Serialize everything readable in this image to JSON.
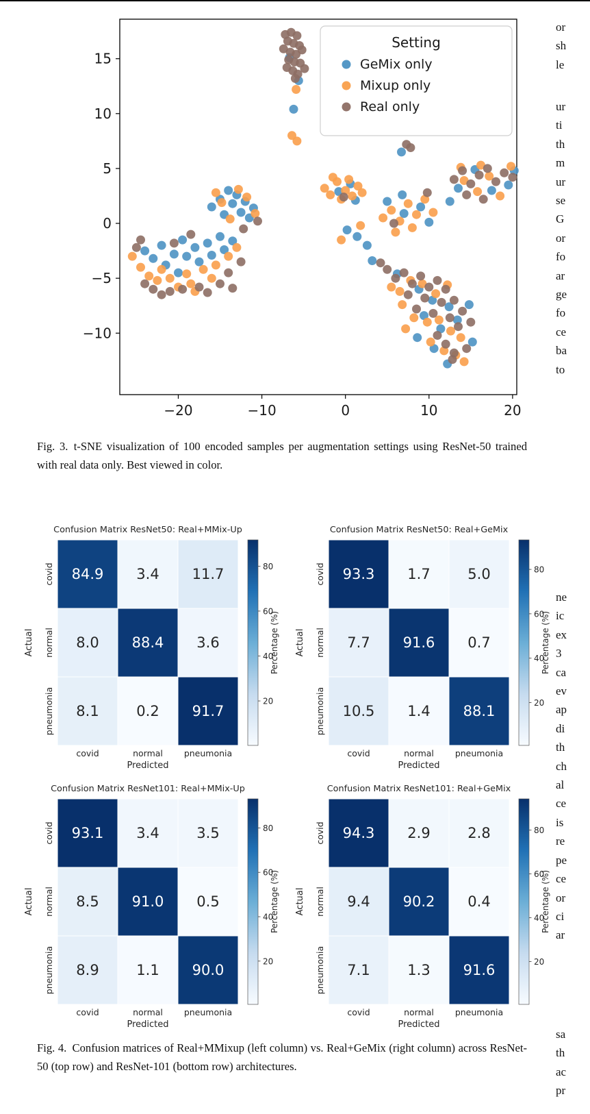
{
  "paper": {
    "figure3_caption": "Fig. 3. t-SNE visualization of 100 encoded samples per augmentation settings using ResNet-50 trained with real data only. Best viewed in color.",
    "figure4_caption": "Fig. 4. Confusion matrices of Real+MMixup (left column) vs. Real+GeMix (right column) across ResNet-50 (top row) and ResNet-101 (bottom row) architectures.",
    "right_column_fragments": [
      [
        "or",
        "sh",
        "le"
      ],
      [
        "ur",
        "ti",
        "th",
        "m",
        "ur",
        "se",
        "G",
        "or",
        "fo",
        "ar",
        "ge",
        "fo",
        "ce",
        "ba",
        "to"
      ],
      [
        "ne",
        "ic",
        "ex",
        "3",
        "ca",
        "ev",
        "ap",
        "di",
        "th",
        "ch",
        "al",
        "ce",
        "is",
        "re",
        "pe",
        "ce",
        "or",
        "ci",
        "ar"
      ],
      [
        "sa",
        "th",
        "ac",
        "pr"
      ]
    ]
  },
  "figure4": {
    "colormap_stops": [
      "#f7fbff",
      "#c6dbef",
      "#6baed6",
      "#2171b5",
      "#08306b"
    ],
    "colorbar_label": "Percentage (%)",
    "colorbar_ticks": [
      20,
      40,
      60,
      80
    ],
    "x_label": "Predicted",
    "y_label": "Actual",
    "classes": [
      "covid",
      "normal",
      "pneumonia"
    ]
  },
  "chart_data": [
    {
      "type": "scatter",
      "id": "tsne",
      "legend_title": "Setting",
      "legend_position": "upper right",
      "grid": false,
      "xlim": [
        -27,
        20.5
      ],
      "ylim": [
        -15.6,
        18.6
      ],
      "xticks": [
        -20,
        -10,
        0,
        10,
        20
      ],
      "yticks": [
        -10,
        -5,
        0,
        5,
        10,
        15
      ],
      "series": [
        {
          "name": "GeMix only",
          "color": "#4c92c3",
          "points": [
            [
              -6.7,
              15.1
            ],
            [
              -5.6,
              13.0
            ],
            [
              -6.2,
              10.4
            ],
            [
              -24,
              -2.5
            ],
            [
              -23,
              -3.2
            ],
            [
              -22,
              -2.0
            ],
            [
              -21.5,
              -3.8
            ],
            [
              -20.5,
              -2.8
            ],
            [
              -19.5,
              -1.5
            ],
            [
              -19,
              -3.0
            ],
            [
              -18,
              -2.2
            ],
            [
              -17.5,
              -3.5
            ],
            [
              -16.5,
              -1.8
            ],
            [
              -16,
              -2.9
            ],
            [
              -15,
              -1.2
            ],
            [
              -14.5,
              -2.4
            ],
            [
              -13.5,
              -1.6
            ],
            [
              -20,
              -4.5
            ],
            [
              -16,
              1.5
            ],
            [
              -15,
              2.2
            ],
            [
              -14.5,
              0.8
            ],
            [
              -13.5,
              1.8
            ],
            [
              -13,
              2.6
            ],
            [
              -12.5,
              1.0
            ],
            [
              -12,
              2.0
            ],
            [
              -11.5,
              0.5
            ],
            [
              -11,
              1.4
            ],
            [
              -14,
              3.0
            ],
            [
              -0.8,
              2.9
            ],
            [
              0.6,
              3.6
            ],
            [
              1.2,
              2.1
            ],
            [
              0.2,
              -0.6
            ],
            [
              1.4,
              -1.2
            ],
            [
              2.6,
              -2.0
            ],
            [
              3.2,
              -3.4
            ],
            [
              5.0,
              2.0
            ],
            [
              7.0,
              0.9
            ],
            [
              9.0,
              1.5
            ],
            [
              10.0,
              0.1
            ],
            [
              6.8,
              2.6
            ],
            [
              6.7,
              6.5
            ],
            [
              13.5,
              3.2
            ],
            [
              15.5,
              4.9
            ],
            [
              17.5,
              3.0
            ],
            [
              19.5,
              3.5
            ],
            [
              20.2,
              4.8
            ],
            [
              12.5,
              2.0
            ],
            [
              6.2,
              -4.6
            ],
            [
              8.8,
              -6.0
            ],
            [
              10.4,
              -7.0
            ],
            [
              12.4,
              -7.6
            ],
            [
              14.8,
              -7.4
            ],
            [
              9.4,
              -8.4
            ],
            [
              11.4,
              -9.6
            ],
            [
              13.4,
              -8.8
            ],
            [
              10.6,
              -11.4
            ],
            [
              12.2,
              -12.8
            ],
            [
              8.6,
              -10.4
            ],
            [
              15.2,
              -10.8
            ]
          ]
        },
        {
          "name": "Mixup only",
          "color": "#f99f4b",
          "points": [
            [
              -5.9,
              12.2
            ],
            [
              -6.4,
              8.0
            ],
            [
              -5.8,
              7.5
            ],
            [
              -25.5,
              -3.0
            ],
            [
              -24.5,
              -4.0
            ],
            [
              -23.5,
              -4.8
            ],
            [
              -22.5,
              -5.2
            ],
            [
              -21,
              -5.0
            ],
            [
              -20,
              -5.8
            ],
            [
              -19,
              -4.6
            ],
            [
              -18.5,
              -5.5
            ],
            [
              -17,
              -4.2
            ],
            [
              -16,
              -5.0
            ],
            [
              -15.5,
              -3.8
            ],
            [
              -14,
              -3.0
            ],
            [
              -13,
              -2.2
            ],
            [
              -22,
              -4.2
            ],
            [
              -18,
              -6.2
            ],
            [
              -15.5,
              2.8
            ],
            [
              -14.8,
              1.9
            ],
            [
              -13.8,
              0.4
            ],
            [
              -12.8,
              3.1
            ],
            [
              -11.8,
              2.4
            ],
            [
              -10.8,
              0.9
            ],
            [
              -2.5,
              3.2
            ],
            [
              -1.8,
              2.6
            ],
            [
              -1.0,
              3.8
            ],
            [
              -0.5,
              2.2
            ],
            [
              0.0,
              3.0
            ],
            [
              0.8,
              2.5
            ],
            [
              1.5,
              3.4
            ],
            [
              2.0,
              2.8
            ],
            [
              -1.5,
              4.2
            ],
            [
              0.4,
              4.0
            ],
            [
              -0.5,
              -1.5
            ],
            [
              1.8,
              -0.2
            ],
            [
              4.5,
              0.5
            ],
            [
              5.5,
              1.2
            ],
            [
              6.5,
              0.2
            ],
            [
              7.5,
              1.8
            ],
            [
              8.5,
              0.8
            ],
            [
              9.5,
              2.2
            ],
            [
              10.5,
              1.0
            ],
            [
              6.0,
              -0.8
            ],
            [
              8.0,
              -0.4
            ],
            [
              14.2,
              3.9
            ],
            [
              15.8,
              2.9
            ],
            [
              17.2,
              4.3
            ],
            [
              18.5,
              2.5
            ],
            [
              19.8,
              5.2
            ],
            [
              13.8,
              5.1
            ],
            [
              16.2,
              5.3
            ],
            [
              5.5,
              -5.8
            ],
            [
              6.5,
              -6.2
            ],
            [
              7.8,
              -5.2
            ],
            [
              9.2,
              -5.5
            ],
            [
              10.8,
              -6.4
            ],
            [
              12.2,
              -5.6
            ],
            [
              8.2,
              -8.6
            ],
            [
              9.8,
              -9.0
            ],
            [
              11.2,
              -8.8
            ],
            [
              12.6,
              -9.8
            ],
            [
              13.8,
              -10.4
            ],
            [
              10.2,
              -10.8
            ],
            [
              11.8,
              -11.6
            ],
            [
              13.2,
              -12.0
            ],
            [
              14.2,
              -12.6
            ],
            [
              6.8,
              -7.4
            ],
            [
              7.2,
              -9.6
            ]
          ]
        },
        {
          "name": "Real only",
          "color": "#8d6e64",
          "points": [
            [
              -7.2,
              17.2
            ],
            [
              -6.5,
              17.4
            ],
            [
              -5.8,
              17.1
            ],
            [
              -6.9,
              16.6
            ],
            [
              -6.2,
              16.4
            ],
            [
              -5.5,
              16.2
            ],
            [
              -7.4,
              15.9
            ],
            [
              -6.6,
              15.6
            ],
            [
              -5.9,
              15.4
            ],
            [
              -6.8,
              14.9
            ],
            [
              -6.1,
              14.7
            ],
            [
              -5.4,
              14.6
            ],
            [
              -7.0,
              14.2
            ],
            [
              -6.3,
              13.9
            ],
            [
              -5.7,
              13.6
            ],
            [
              -6.0,
              13.2
            ],
            [
              -5.2,
              15.8
            ],
            [
              -4.9,
              14.1
            ],
            [
              -25,
              -2.2
            ],
            [
              -24,
              -5.5
            ],
            [
              -23,
              -6.0
            ],
            [
              -22,
              -6.5
            ],
            [
              -21,
              -6.2
            ],
            [
              -20.5,
              -1.8
            ],
            [
              -19.5,
              -6.0
            ],
            [
              -18.5,
              -1.0
            ],
            [
              -17.5,
              -5.8
            ],
            [
              -16.5,
              -6.3
            ],
            [
              -15,
              -5.5
            ],
            [
              -14,
              -4.5
            ],
            [
              -13.5,
              -5.9
            ],
            [
              -12.5,
              -3.5
            ],
            [
              -24.5,
              -1.5
            ],
            [
              -12.2,
              -0.5
            ],
            [
              -10.5,
              0.2
            ],
            [
              -0.2,
              2.4
            ],
            [
              5.8,
              0.0
            ],
            [
              9.8,
              2.8
            ],
            [
              7.3,
              7.2
            ],
            [
              7.8,
              6.9
            ],
            [
              13,
              4.0
            ],
            [
              14,
              4.8
            ],
            [
              15,
              3.6
            ],
            [
              16,
              4.4
            ],
            [
              17,
              5.0
            ],
            [
              18,
              3.8
            ],
            [
              19,
              4.6
            ],
            [
              20,
              4.2
            ],
            [
              14.5,
              2.6
            ],
            [
              16.5,
              2.2
            ],
            [
              4.2,
              -3.6
            ],
            [
              5,
              -4.2
            ],
            [
              6,
              -5.0
            ],
            [
              7,
              -4.5
            ],
            [
              8,
              -5.5
            ],
            [
              9,
              -4.8
            ],
            [
              10,
              -5.8
            ],
            [
              11,
              -5.2
            ],
            [
              12,
              -6.0
            ],
            [
              7.5,
              -6.5
            ],
            [
              9.5,
              -6.8
            ],
            [
              11.5,
              -7.2
            ],
            [
              13,
              -7.0
            ],
            [
              8.5,
              -7.8
            ],
            [
              10.5,
              -8.2
            ],
            [
              12.5,
              -8.6
            ],
            [
              14,
              -8.0
            ],
            [
              13.5,
              -9.4
            ],
            [
              15,
              -9.0
            ],
            [
              11,
              -10.2
            ],
            [
              12,
              -11.0
            ],
            [
              13,
              -11.8
            ],
            [
              14.5,
              -11.4
            ],
            [
              12.8,
              -12.4
            ]
          ]
        }
      ]
    },
    {
      "type": "heatmap",
      "title": "Confusion Matrix ResNet50: Real+MMix-Up",
      "x_categories": [
        "covid",
        "normal",
        "pneumonia"
      ],
      "y_categories": [
        "covid",
        "normal",
        "pneumonia"
      ],
      "xlabel": "Predicted",
      "ylabel": "Actual",
      "colormap": "Blues",
      "colorbar_label": "Percentage (%)",
      "colorbar_ticks": [
        20,
        40,
        60,
        80
      ],
      "values": [
        [
          84.9,
          3.4,
          11.7
        ],
        [
          8.0,
          88.4,
          3.6
        ],
        [
          8.1,
          0.2,
          91.7
        ]
      ]
    },
    {
      "type": "heatmap",
      "title": "Confusion Matrix ResNet50: Real+GeMix",
      "x_categories": [
        "covid",
        "normal",
        "pneumonia"
      ],
      "y_categories": [
        "covid",
        "normal",
        "pneumonia"
      ],
      "xlabel": "Predicted",
      "ylabel": "Actual",
      "colormap": "Blues",
      "colorbar_label": "Percentage (%)",
      "colorbar_ticks": [
        20,
        40,
        60,
        80
      ],
      "values": [
        [
          93.3,
          1.7,
          5.0
        ],
        [
          7.7,
          91.6,
          0.7
        ],
        [
          10.5,
          1.4,
          88.1
        ]
      ]
    },
    {
      "type": "heatmap",
      "title": "Confusion Matrix ResNet101: Real+MMix-Up",
      "x_categories": [
        "covid",
        "normal",
        "pneumonia"
      ],
      "y_categories": [
        "covid",
        "normal",
        "pneumonia"
      ],
      "xlabel": "Predicted",
      "ylabel": "Actual",
      "colormap": "Blues",
      "colorbar_label": "Percentage (%)",
      "colorbar_ticks": [
        20,
        40,
        60,
        80
      ],
      "values": [
        [
          93.1,
          3.4,
          3.5
        ],
        [
          8.5,
          91.0,
          0.5
        ],
        [
          8.9,
          1.1,
          90.0
        ]
      ]
    },
    {
      "type": "heatmap",
      "title": "Confusion Matrix ResNet101: Real+GeMix",
      "x_categories": [
        "covid",
        "normal",
        "pneumonia"
      ],
      "y_categories": [
        "covid",
        "normal",
        "pneumonia"
      ],
      "xlabel": "Predicted",
      "ylabel": "Actual",
      "colormap": "Blues",
      "colorbar_label": "Percentage (%)",
      "colorbar_ticks": [
        20,
        40,
        60,
        80
      ],
      "values": [
        [
          94.3,
          2.9,
          2.8
        ],
        [
          9.4,
          90.2,
          0.4
        ],
        [
          7.1,
          1.3,
          91.6
        ]
      ]
    }
  ]
}
